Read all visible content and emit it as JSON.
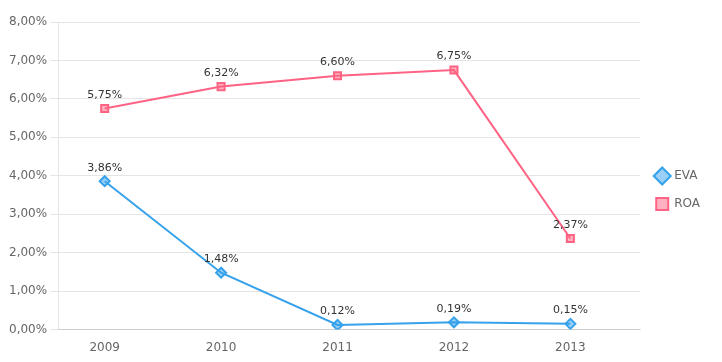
{
  "chart_data": {
    "type": "line",
    "x": [
      2009,
      2010,
      2011,
      2012,
      2013
    ],
    "xlim": [
      2008.6,
      2013.6
    ],
    "xticks": [
      2009,
      2010,
      2011,
      2012,
      2013
    ],
    "ylim": [
      0,
      8.0
    ],
    "yticks": [
      {
        "value": 0,
        "label": "0,00%"
      },
      {
        "value": 1.0,
        "label": "1,00%"
      },
      {
        "value": 2.0,
        "label": "2,00%"
      },
      {
        "value": 3.0,
        "label": "3,00%"
      },
      {
        "value": 4.0,
        "label": "4,00%"
      },
      {
        "value": 5.0,
        "label": "5,00%"
      },
      {
        "value": 6.0,
        "label": "6,00%"
      },
      {
        "value": 7.0,
        "label": "7,00%"
      },
      {
        "value": 8.0,
        "label": "8,00%"
      }
    ],
    "grid": "y",
    "legend": "right",
    "data_labels": true,
    "series": [
      {
        "name": "EVA",
        "marker": "diamond",
        "values": [
          3.86,
          1.48,
          0.12,
          0.19,
          0.15
        ],
        "value_labels": [
          "3,86%",
          "1,48%",
          "0,12%",
          "0,19%",
          "0,15%"
        ]
      },
      {
        "name": "ROA",
        "marker": "square",
        "values": [
          5.75,
          6.32,
          6.6,
          6.75,
          2.37
        ],
        "value_labels": [
          "5,75%",
          "6,32%",
          "6,60%",
          "6,75%",
          "2,37%"
        ]
      }
    ]
  }
}
